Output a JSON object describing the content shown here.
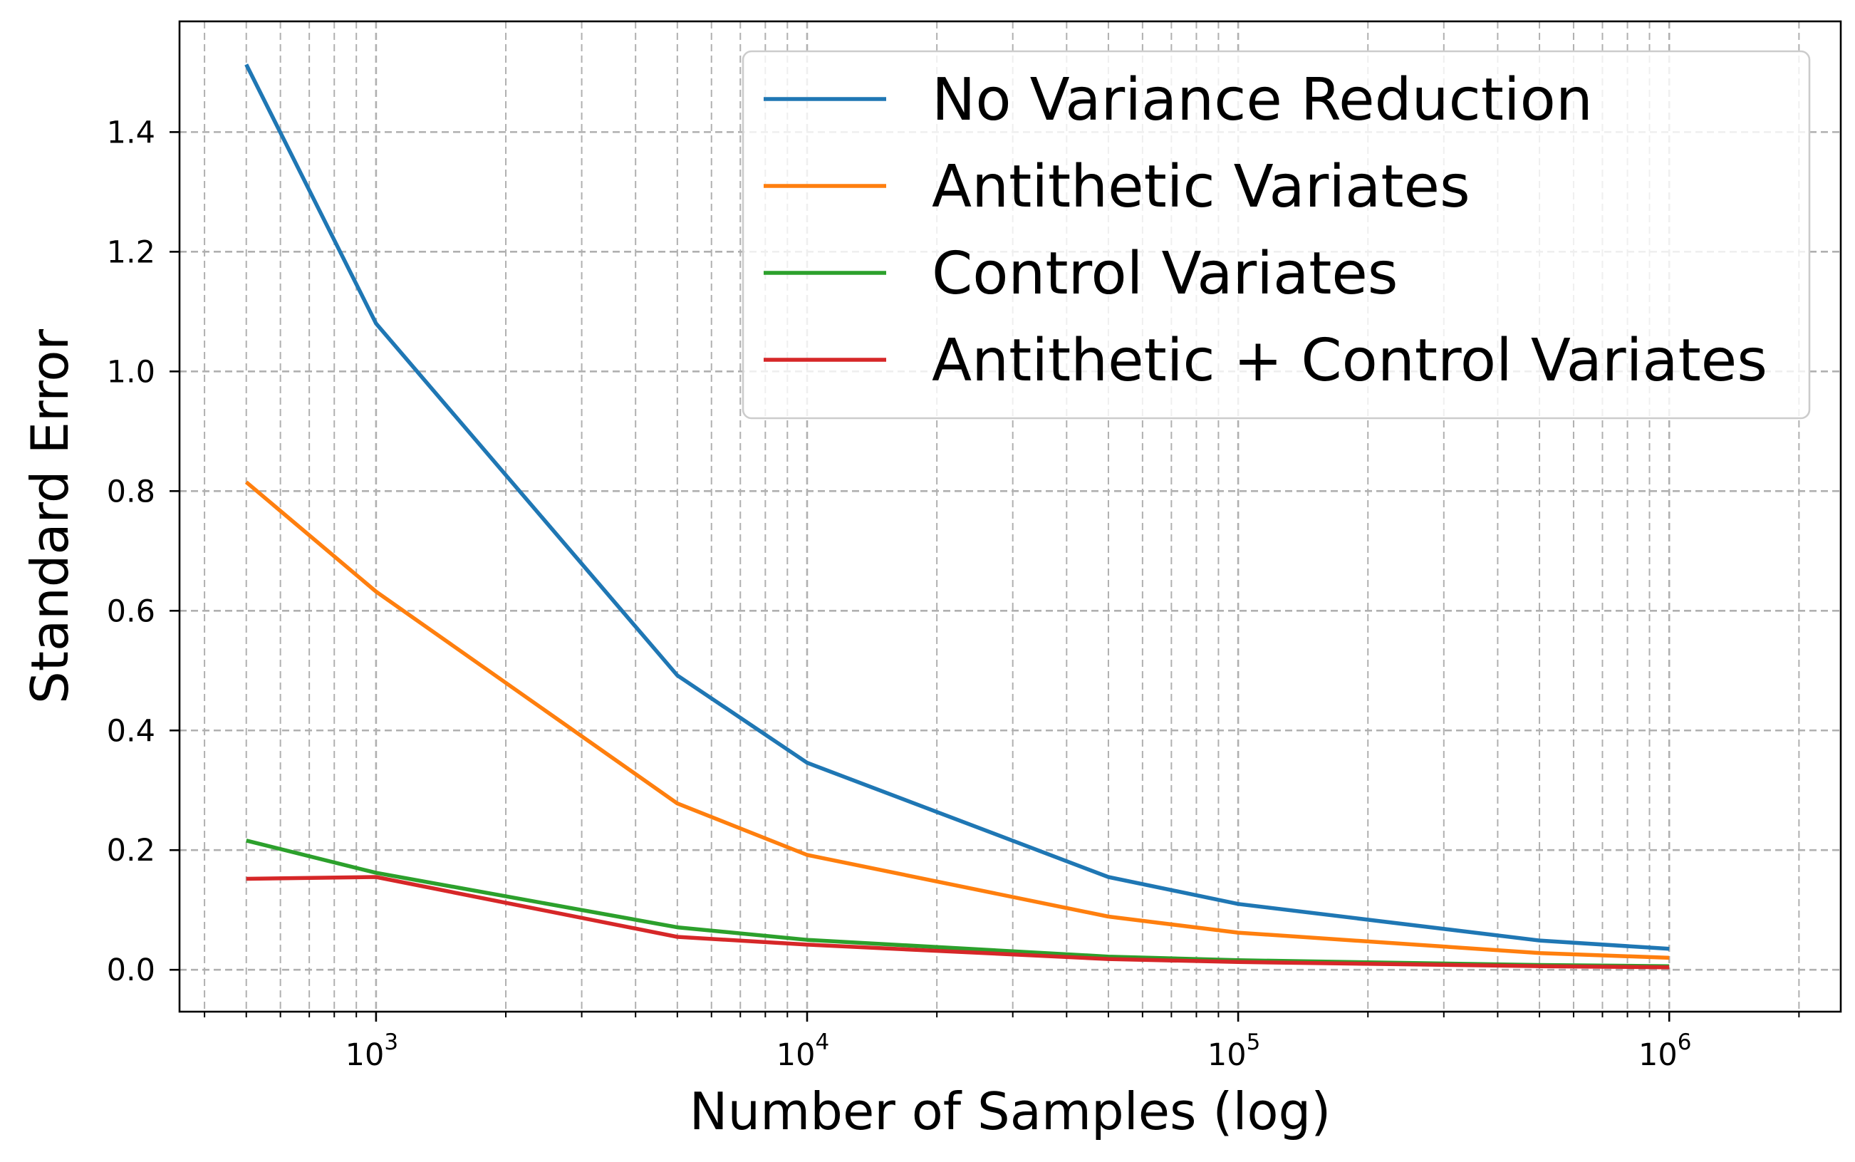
{
  "chart_data": {
    "type": "line",
    "xscale": "log",
    "xlabel": "Number of Samples (log)",
    "ylabel": "Standard Error",
    "xlim": [
      350,
      2500000
    ],
    "ylim": [
      -0.07,
      1.585
    ],
    "x_ticks": [
      {
        "base": "10",
        "exp": "3",
        "value": 1000
      },
      {
        "base": "10",
        "exp": "4",
        "value": 10000
      },
      {
        "base": "10",
        "exp": "5",
        "value": 100000
      },
      {
        "base": "10",
        "exp": "6",
        "value": 1000000
      }
    ],
    "y_ticks": [
      "0.0",
      "0.2",
      "0.4",
      "0.6",
      "0.8",
      "1.0",
      "1.2",
      "1.4"
    ],
    "grid": true,
    "legend_position": "top-right",
    "x": [
      500,
      1000,
      5000,
      10000,
      50000,
      100000,
      500000,
      1000000
    ],
    "series": [
      {
        "name": "No Variance Reduction",
        "color": "#1f77b4",
        "values": [
          1.513,
          1.08,
          0.492,
          0.346,
          0.155,
          0.11,
          0.049,
          0.035
        ]
      },
      {
        "name": "Antithetic Variates",
        "color": "#ff7f0e",
        "values": [
          0.815,
          0.632,
          0.278,
          0.192,
          0.089,
          0.062,
          0.028,
          0.02
        ]
      },
      {
        "name": "Control Variates",
        "color": "#2ca02c",
        "values": [
          0.216,
          0.162,
          0.071,
          0.05,
          0.022,
          0.016,
          0.008,
          0.006
        ]
      },
      {
        "name": "Antithetic + Control Variates",
        "color": "#d62728",
        "values": [
          0.152,
          0.155,
          0.055,
          0.042,
          0.018,
          0.013,
          0.006,
          0.004
        ]
      }
    ]
  }
}
